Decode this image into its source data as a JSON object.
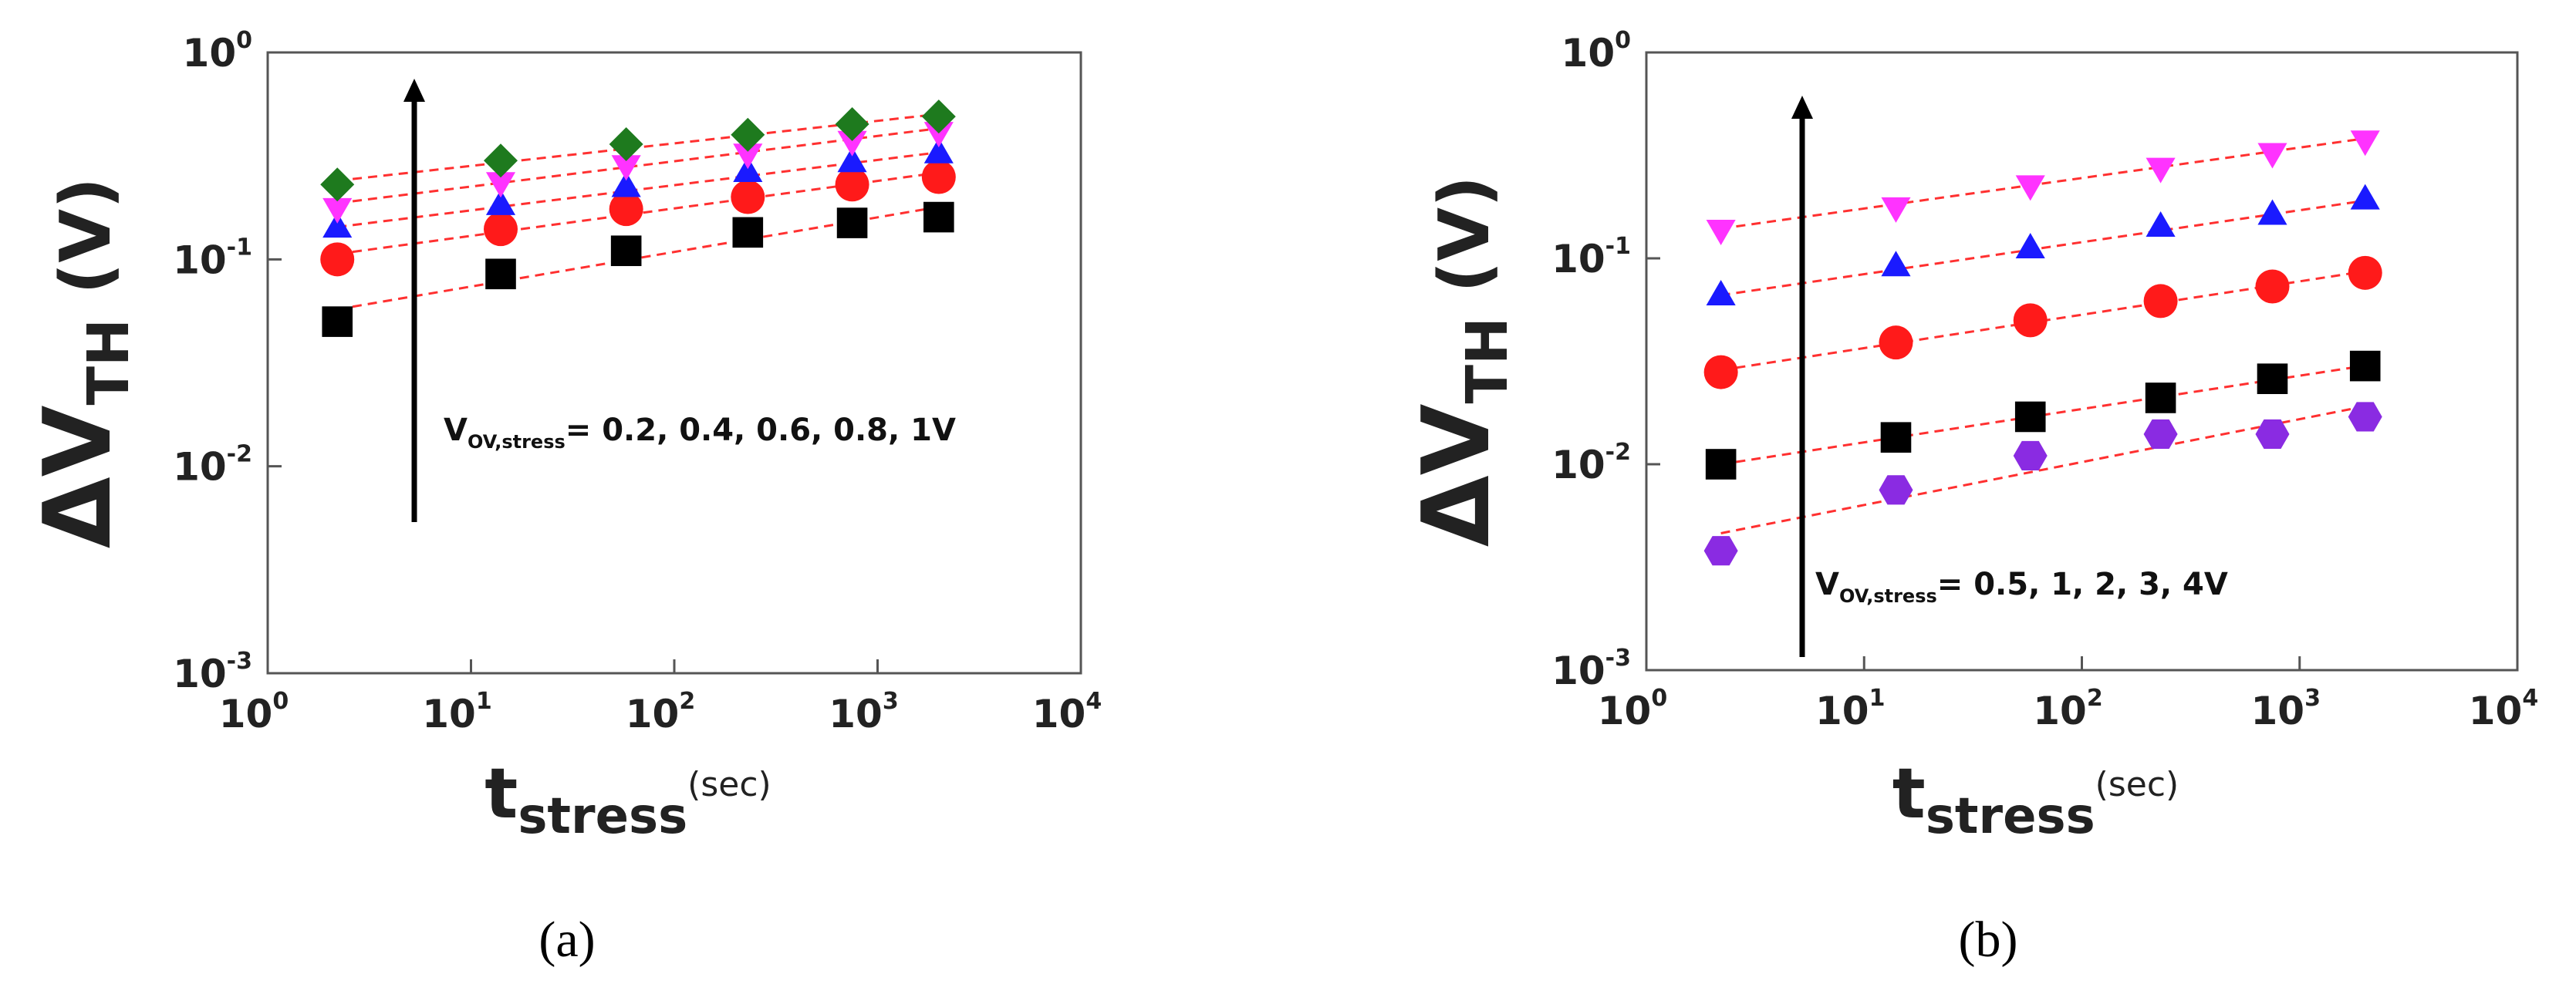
{
  "chart_data": [
    {
      "type": "scatter",
      "caption": "(a)",
      "xscale": "log",
      "yscale": "log",
      "x_label": {
        "main": "t",
        "sub": "stress",
        "sup": "(sec)"
      },
      "y_label": {
        "main": "ΔV",
        "sub": "TH",
        "rest": " (V)"
      },
      "annotation": {
        "main": "V",
        "sub": "OV,stress",
        "rest": "= 0.2, 0.4, 0.6, 0.8, 1V"
      },
      "x": [
        2.2,
        14,
        58,
        230,
        750,
        2000
      ],
      "xlim": [
        1,
        10000
      ],
      "xticks": [
        {
          "value": 1,
          "label": "10",
          "exp": "0"
        },
        {
          "value": 10,
          "label": "10",
          "exp": "1"
        },
        {
          "value": 100,
          "label": "10",
          "exp": "2"
        },
        {
          "value": 1000,
          "label": "10",
          "exp": "3"
        },
        {
          "value": 10000,
          "label": "10",
          "exp": "4"
        }
      ],
      "ylim": [
        0.001,
        1
      ],
      "yticks": [
        {
          "value": 0.001,
          "label": "10",
          "exp": "-3"
        },
        {
          "value": 0.01,
          "label": "10",
          "exp": "-2"
        },
        {
          "value": 0.1,
          "label": "10",
          "exp": "-1"
        },
        {
          "value": 1,
          "label": "10",
          "exp": "0"
        }
      ],
      "fit_color": "#ff3030",
      "series": [
        {
          "marker": "square",
          "color": "#000000",
          "values": [
            0.05,
            0.085,
            0.11,
            0.135,
            0.15,
            0.16
          ]
        },
        {
          "marker": "circle",
          "color": "#ff1a1a",
          "values": [
            0.1,
            0.14,
            0.175,
            0.2,
            0.23,
            0.25
          ]
        },
        {
          "marker": "triangle-up",
          "color": "#1a1aff",
          "values": [
            0.14,
            0.18,
            0.22,
            0.26,
            0.29,
            0.32
          ]
        },
        {
          "marker": "triangle-down",
          "color": "#ff33ff",
          "values": [
            0.18,
            0.24,
            0.29,
            0.33,
            0.38,
            0.42
          ]
        },
        {
          "marker": "diamond",
          "color": "#1e7a1e",
          "values": [
            0.23,
            0.3,
            0.36,
            0.4,
            0.45,
            0.49
          ]
        }
      ]
    },
    {
      "type": "scatter",
      "caption": "(b)",
      "xscale": "log",
      "yscale": "log",
      "x_label": {
        "main": "t",
        "sub": "stress",
        "sup": "(sec)"
      },
      "y_label": {
        "main": "ΔV",
        "sub": "TH",
        "rest": " (V)"
      },
      "annotation": {
        "main": "V",
        "sub": "OV,stress",
        "rest": "= 0.5, 1, 2, 3, 4V"
      },
      "x": [
        2.2,
        14,
        58,
        230,
        750,
        2000
      ],
      "xlim": [
        1,
        10000
      ],
      "xticks": [
        {
          "value": 1,
          "label": "10",
          "exp": "0"
        },
        {
          "value": 10,
          "label": "10",
          "exp": "1"
        },
        {
          "value": 100,
          "label": "10",
          "exp": "2"
        },
        {
          "value": 1000,
          "label": "10",
          "exp": "3"
        },
        {
          "value": 10000,
          "label": "10",
          "exp": "4"
        }
      ],
      "ylim": [
        0.001,
        1
      ],
      "yticks": [
        {
          "value": 0.001,
          "label": "10",
          "exp": "-3"
        },
        {
          "value": 0.01,
          "label": "10",
          "exp": "-2"
        },
        {
          "value": 0.1,
          "label": "10",
          "exp": "-1"
        },
        {
          "value": 1,
          "label": "10",
          "exp": "0"
        }
      ],
      "fit_color": "#ff3030",
      "series": [
        {
          "marker": "hexagon",
          "color": "#8a2be2",
          "values": [
            0.0038,
            0.0075,
            0.011,
            0.014,
            0.014,
            0.017
          ]
        },
        {
          "marker": "square",
          "color": "#000000",
          "values": [
            0.01,
            0.0135,
            0.017,
            0.021,
            0.026,
            0.03
          ]
        },
        {
          "marker": "circle",
          "color": "#ff1a1a",
          "values": [
            0.028,
            0.039,
            0.05,
            0.062,
            0.073,
            0.085
          ]
        },
        {
          "marker": "triangle-up",
          "color": "#1a1aff",
          "values": [
            0.065,
            0.09,
            0.11,
            0.14,
            0.16,
            0.19
          ]
        },
        {
          "marker": "triangle-down",
          "color": "#ff33ff",
          "values": [
            0.14,
            0.18,
            0.23,
            0.28,
            0.33,
            0.38
          ]
        }
      ]
    }
  ]
}
